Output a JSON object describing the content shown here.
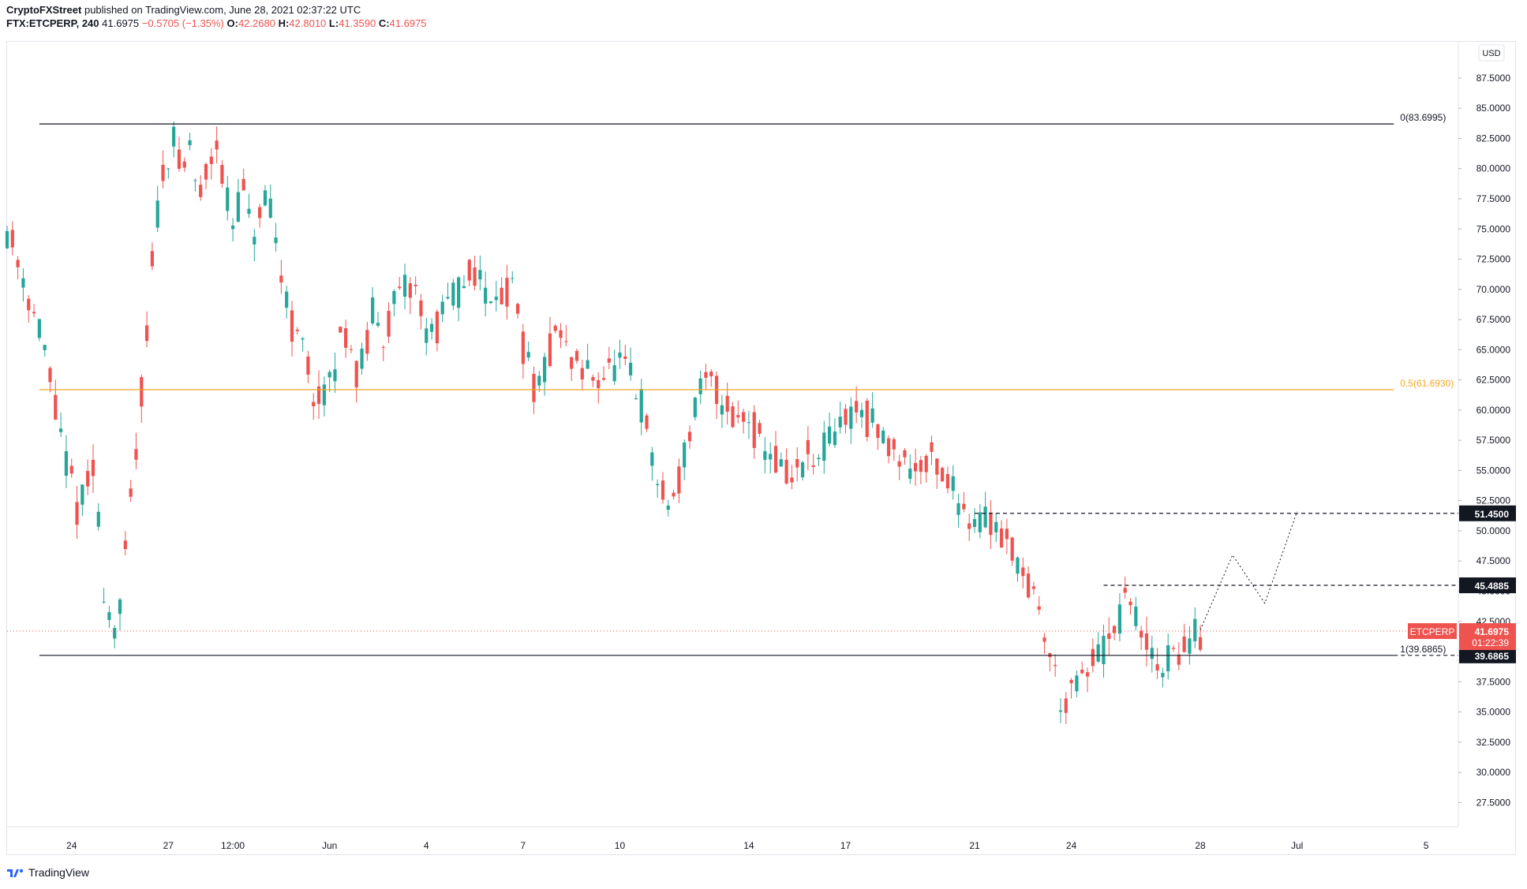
{
  "header": {
    "line1_publisher": "CryptoFXStreet",
    "line1_rest": " published on TradingView.com, June 28, 2021 02:37:22 UTC",
    "symbol": "FTX:ETCPERP, 240",
    "last": "41.6975",
    "change": "−0.5705 (−1.35%)",
    "o_label": "O:",
    "o_value": "42.2680",
    "h_label": "H:",
    "h_value": "42.8010",
    "l_label": "L:",
    "l_value": "41.3590",
    "c_label": "C:",
    "c_value": "41.6975"
  },
  "footer": {
    "brand": "TradingView",
    "logo_icon": "tradingview-logo-icon"
  },
  "colors": {
    "up": "#26a69a",
    "down": "#ef5350",
    "fib_mid": "#f5a623",
    "line": "#131722",
    "badge_dark": "#131722",
    "badge_red": "#ef5350"
  },
  "chart_data": {
    "type": "candlestick",
    "currency_label": "USD",
    "ylim": [
      25.5,
      90.5
    ],
    "y_ticks": [
      27.5,
      30.0,
      32.5,
      35.0,
      37.5,
      40.0,
      42.5,
      45.0,
      47.5,
      50.0,
      52.5,
      55.0,
      57.5,
      60.0,
      62.5,
      65.0,
      67.5,
      70.0,
      72.5,
      75.0,
      77.5,
      80.0,
      82.5,
      85.0,
      87.5
    ],
    "y_tick_labels": [
      "27.5000",
      "30.0000",
      "32.5000",
      "35.0000",
      "37.5000",
      "40.0000",
      "42.5000",
      "45.0000",
      "47.5000",
      "50.0000",
      "52.5000",
      "55.0000",
      "57.5000",
      "60.0000",
      "62.5000",
      "65.0000",
      "67.5000",
      "70.0000",
      "72.5000",
      "75.0000",
      "77.5000",
      "80.0000",
      "82.5000",
      "85.0000",
      "87.5000"
    ],
    "x_date_range": [
      "2021-05-22",
      "2021-07-06"
    ],
    "x_ticks": [
      {
        "date": "2021-05-24",
        "label": "24"
      },
      {
        "date": "2021-05-27",
        "label": "27"
      },
      {
        "date": "2021-05-29",
        "label": "12:00"
      },
      {
        "date": "2021-06-01",
        "label": "Jun"
      },
      {
        "date": "2021-06-04",
        "label": "4"
      },
      {
        "date": "2021-06-07",
        "label": "7"
      },
      {
        "date": "2021-06-10",
        "label": "10"
      },
      {
        "date": "2021-06-14",
        "label": "14"
      },
      {
        "date": "2021-06-17",
        "label": "17"
      },
      {
        "date": "2021-06-21",
        "label": "21"
      },
      {
        "date": "2021-06-24",
        "label": "24"
      },
      {
        "date": "2021-06-28",
        "label": "28"
      },
      {
        "date": "2021-07-01",
        "label": "Jul"
      },
      {
        "date": "2021-07-05",
        "label": "5"
      }
    ],
    "series": [
      {
        "name": "ETCPERP",
        "interval": "240",
        "date_start": "2021-05-22",
        "date_end": "2021-06-28",
        "path": [
          75,
          73,
          71,
          68,
          66,
          62,
          58,
          55,
          52,
          53,
          55,
          46,
          42,
          43,
          51,
          58,
          66,
          75,
          80,
          83,
          79,
          82,
          77,
          80,
          83,
          78,
          75,
          79,
          74,
          76,
          77,
          73,
          70,
          66,
          65,
          62,
          60,
          62,
          65,
          67,
          63,
          64,
          68,
          66,
          68,
          69,
          70,
          70,
          67,
          66,
          68,
          69,
          70,
          71,
          72,
          69,
          71,
          69,
          70,
          66,
          63,
          61,
          64,
          67,
          65,
          64,
          63,
          63,
          63,
          63,
          64,
          63,
          62,
          60,
          56,
          53,
          52,
          54,
          57,
          60,
          62,
          62,
          61,
          60,
          59,
          60,
          58,
          57,
          56,
          55,
          54,
          55,
          56,
          55,
          57,
          58,
          59,
          60,
          60,
          59,
          58,
          57,
          57,
          56,
          55,
          56,
          56,
          55,
          54,
          53,
          52,
          51,
          51,
          51,
          50,
          49,
          48,
          46,
          44,
          42,
          39,
          36,
          36,
          37,
          38,
          40,
          40,
          41,
          43,
          45,
          41,
          40,
          39,
          39,
          40,
          40,
          41,
          41.7
        ]
      }
    ],
    "annotations": {
      "fib_levels": [
        {
          "label": "0(83.6995)",
          "value": 83.6995
        },
        {
          "label": "0.5(61.6930)",
          "value": 61.693
        },
        {
          "label": "1(39.6865)",
          "value": 39.6865
        }
      ],
      "fib_date_start": "2021-05-23",
      "fib_date_end": "2021-07-04",
      "resistance_levels": [
        {
          "value": 51.45,
          "label": "51.4500",
          "date_start": "2021-06-21"
        },
        {
          "value": 45.4885,
          "label": "45.4885",
          "date_start": "2021-06-25"
        },
        {
          "value": 39.6865,
          "label": "39.6865",
          "date_start": "2021-07-04"
        }
      ],
      "forecast_path": [
        {
          "date": "2021-06-28",
          "value": 41.8
        },
        {
          "date": "2021-06-29",
          "value": 48.0
        },
        {
          "date": "2021-06-30",
          "value": 44.0
        },
        {
          "date": "2021-07-01",
          "value": 51.6
        }
      ],
      "current_price": {
        "value": 41.6975,
        "symbol": "ETCPERP",
        "price": "41.6975",
        "countdown": "01:22:39"
      }
    }
  }
}
